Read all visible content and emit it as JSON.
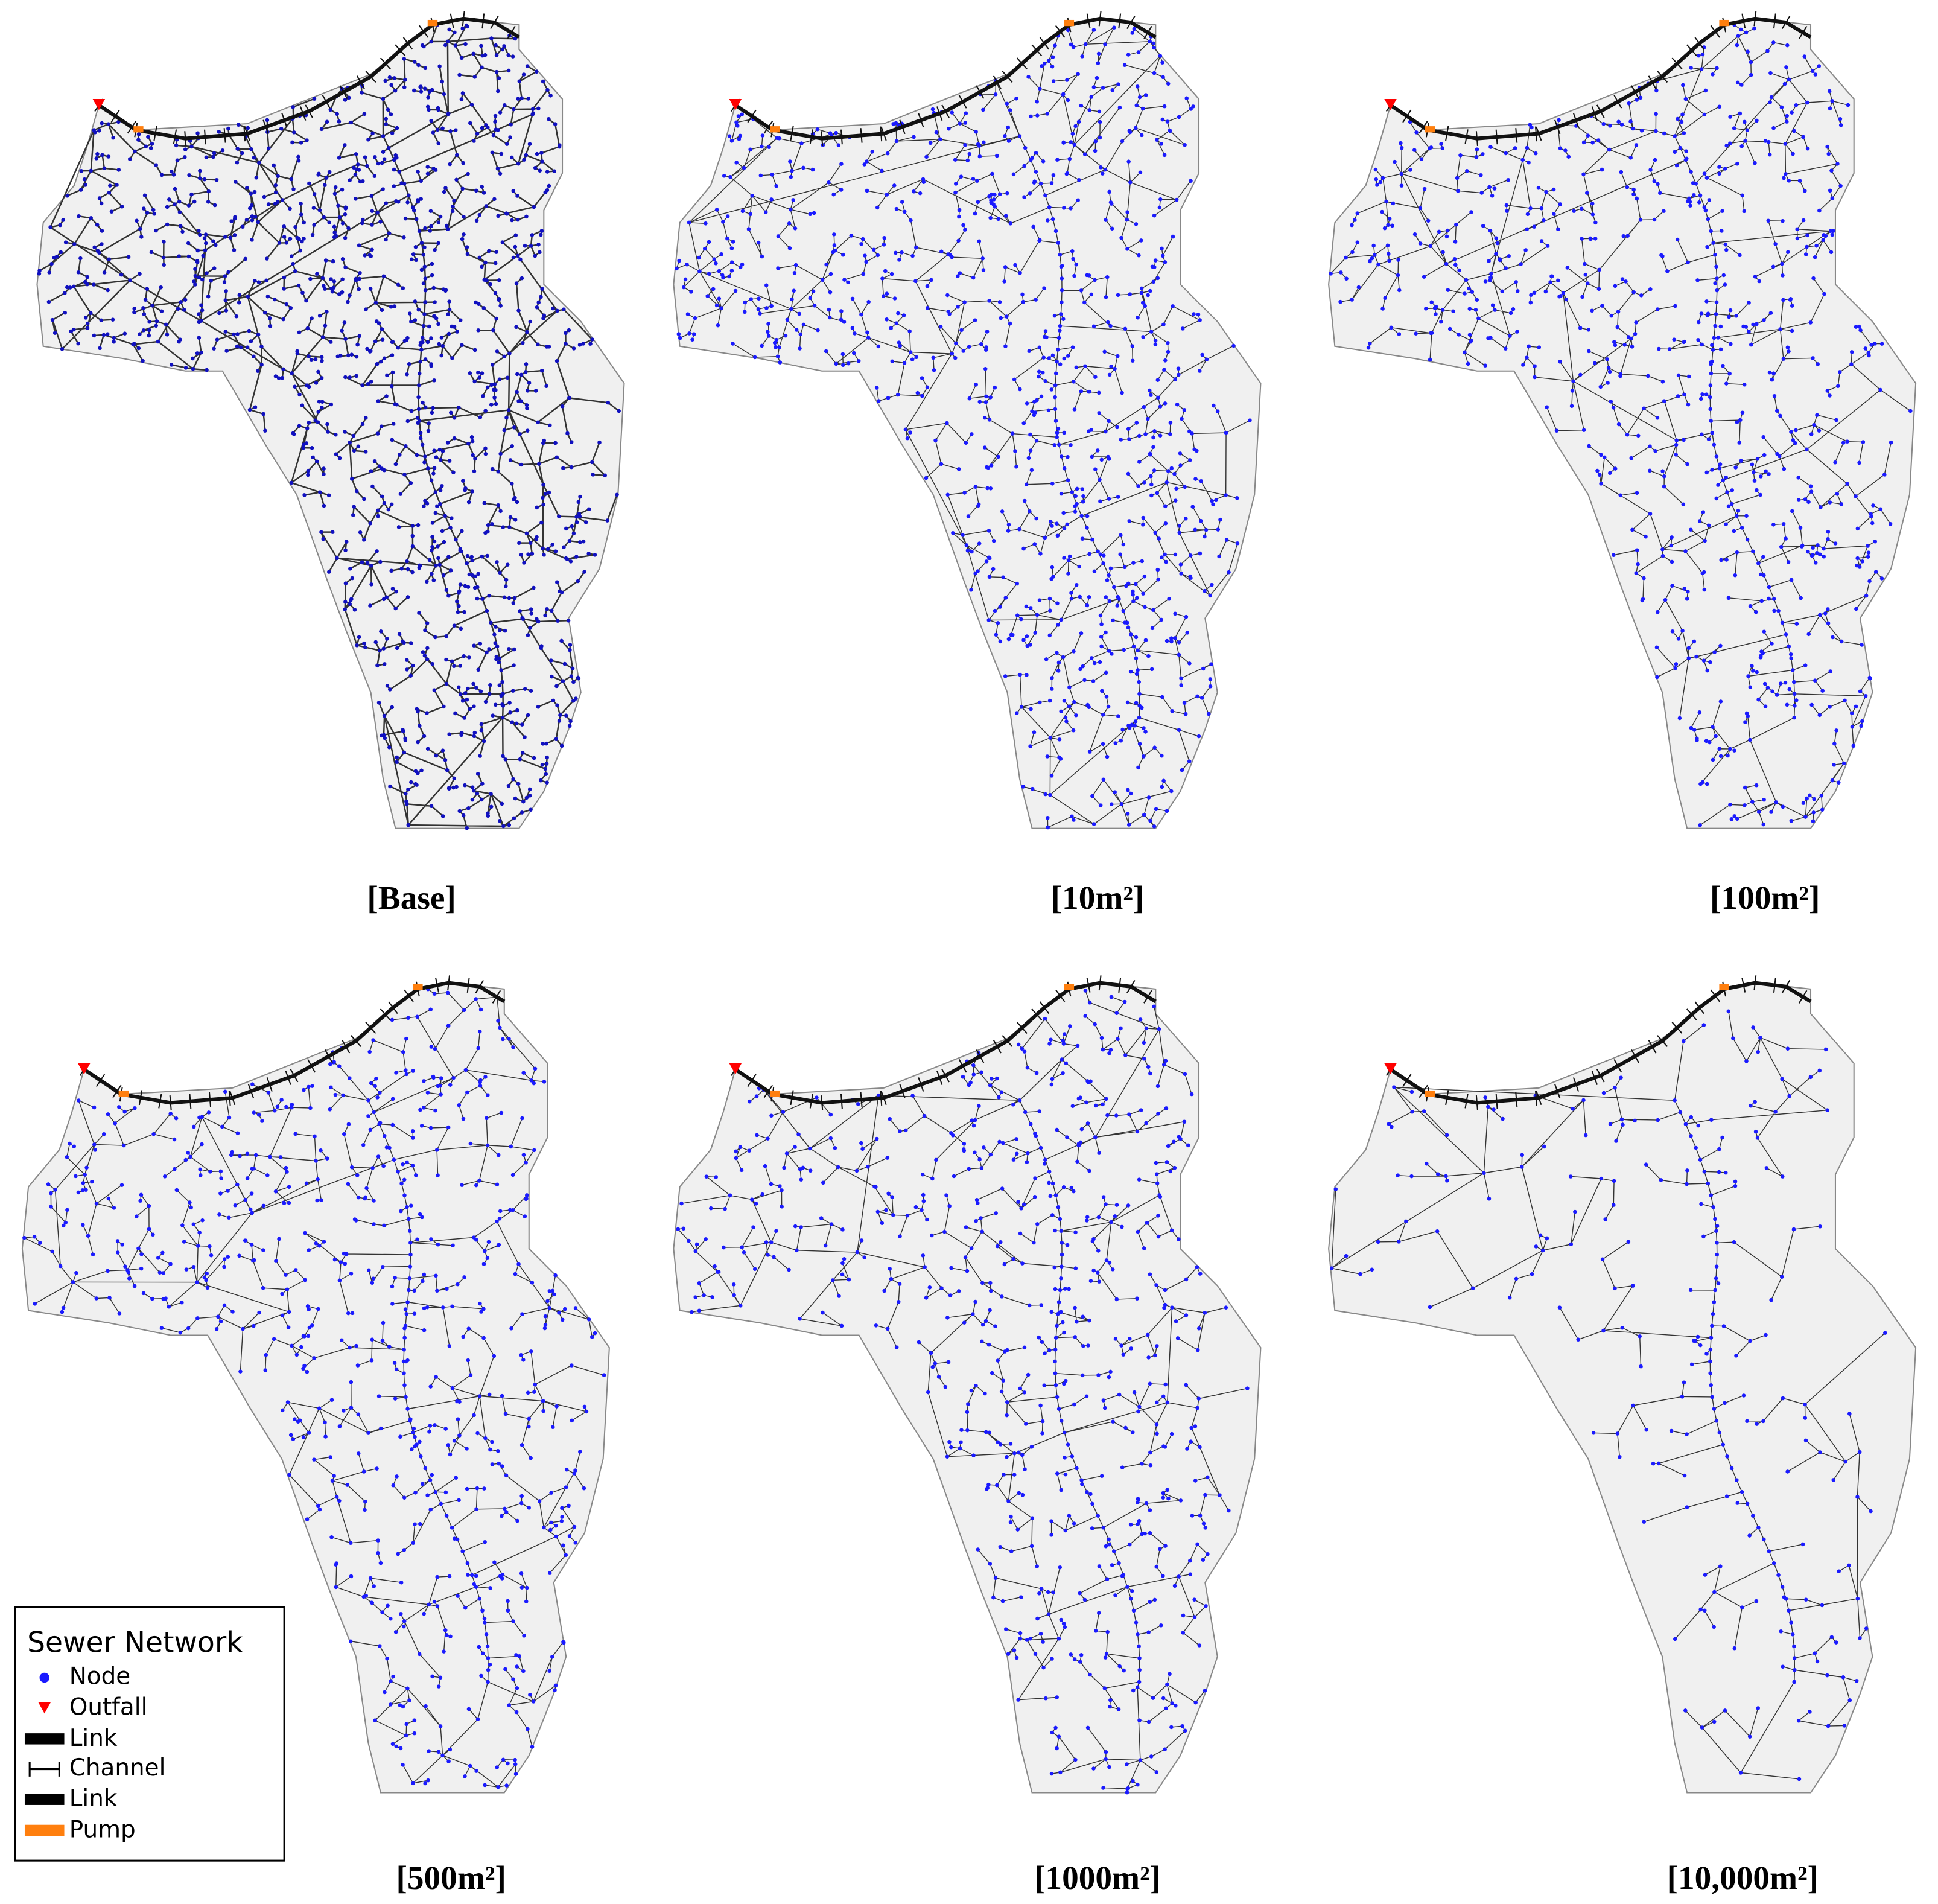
{
  "panels": [
    {
      "caption": "[Base]"
    },
    {
      "caption": "[10m²]"
    },
    {
      "caption": "[100m²]"
    },
    {
      "caption": "[500m²]"
    },
    {
      "caption": "[1000m²]"
    },
    {
      "caption": "[10,000m²]"
    }
  ],
  "legend": {
    "title": "Sewer Network",
    "items": [
      "Node",
      "Outfall",
      "Link",
      "Channel",
      "Link",
      "Pump"
    ]
  }
}
